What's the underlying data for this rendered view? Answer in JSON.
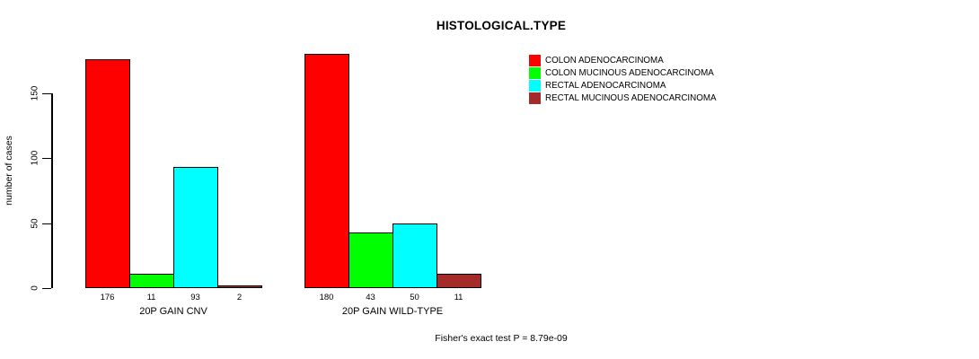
{
  "title": "HISTOLOGICAL.TYPE",
  "footer": "Fisher's exact test P = 8.79e-09",
  "chart_data": {
    "type": "bar",
    "title": "HISTOLOGICAL.TYPE",
    "xlabel": "",
    "ylabel": "number of cases",
    "ylim": [
      0,
      180
    ],
    "yticks": [
      0,
      50,
      100,
      150
    ],
    "grid": false,
    "legend_position": "top-right",
    "bar_value_labels_shown": true,
    "categories": [
      "20P GAIN CNV",
      "20P GAIN WILD-TYPE"
    ],
    "series": [
      {
        "name": "COLON ADENOCARCINOMA",
        "color": "#FF0000",
        "values": [
          176,
          180
        ]
      },
      {
        "name": "COLON MUCINOUS ADENOCARCINOMA",
        "color": "#00FF00",
        "values": [
          11,
          43
        ]
      },
      {
        "name": "RECTAL ADENOCARCINOMA",
        "color": "#00FFFF",
        "values": [
          93,
          50
        ]
      },
      {
        "name": "RECTAL MUCINOUS ADENOCARCINOMA",
        "color": "#A52A2A",
        "values": [
          2,
          11
        ]
      }
    ],
    "annotation": "Fisher's exact test P = 8.79e-09"
  }
}
